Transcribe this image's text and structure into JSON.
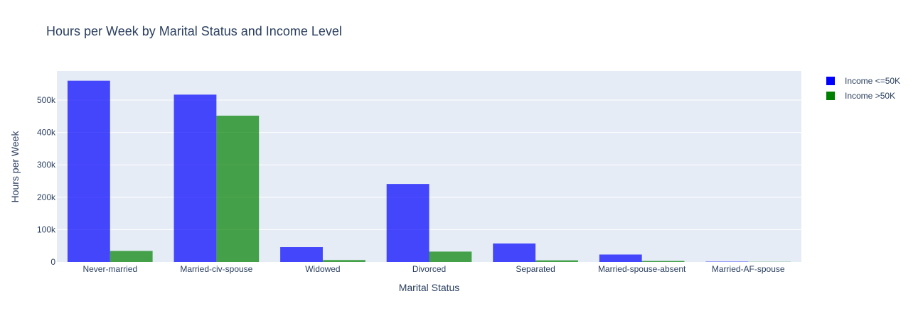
{
  "colors": {
    "plot_bg": "#E5ECF6",
    "grid": "#FFFFFF",
    "text": "#2A3F5F",
    "tick_text": "#2A3F5F"
  },
  "chart_data": {
    "type": "bar",
    "barmode": "group",
    "title": "Hours per Week by Marital Status and Income Level",
    "xlabel": "Marital Status",
    "ylabel": "Hours per Week",
    "categories": [
      "Never-married",
      "Married-civ-spouse",
      "Widowed",
      "Divorced",
      "Separated",
      "Married-spouse-absent",
      "Married-AF-spouse"
    ],
    "ylim": [
      0,
      590000
    ],
    "yticks": [
      0,
      100000,
      200000,
      300000,
      400000,
      500000
    ],
    "ytick_labels": [
      "0",
      "100k",
      "200k",
      "300k",
      "400k",
      "500k"
    ],
    "grid": true,
    "legend_position": "top-right",
    "series": [
      {
        "name": "Income <=50K",
        "color": "#0000FF",
        "values": [
          560000,
          517000,
          46000,
          241000,
          57000,
          23000,
          1000
        ]
      },
      {
        "name": "Income >50K",
        "color": "#008000",
        "values": [
          34000,
          452000,
          6000,
          32000,
          5000,
          3000,
          500
        ]
      }
    ]
  }
}
